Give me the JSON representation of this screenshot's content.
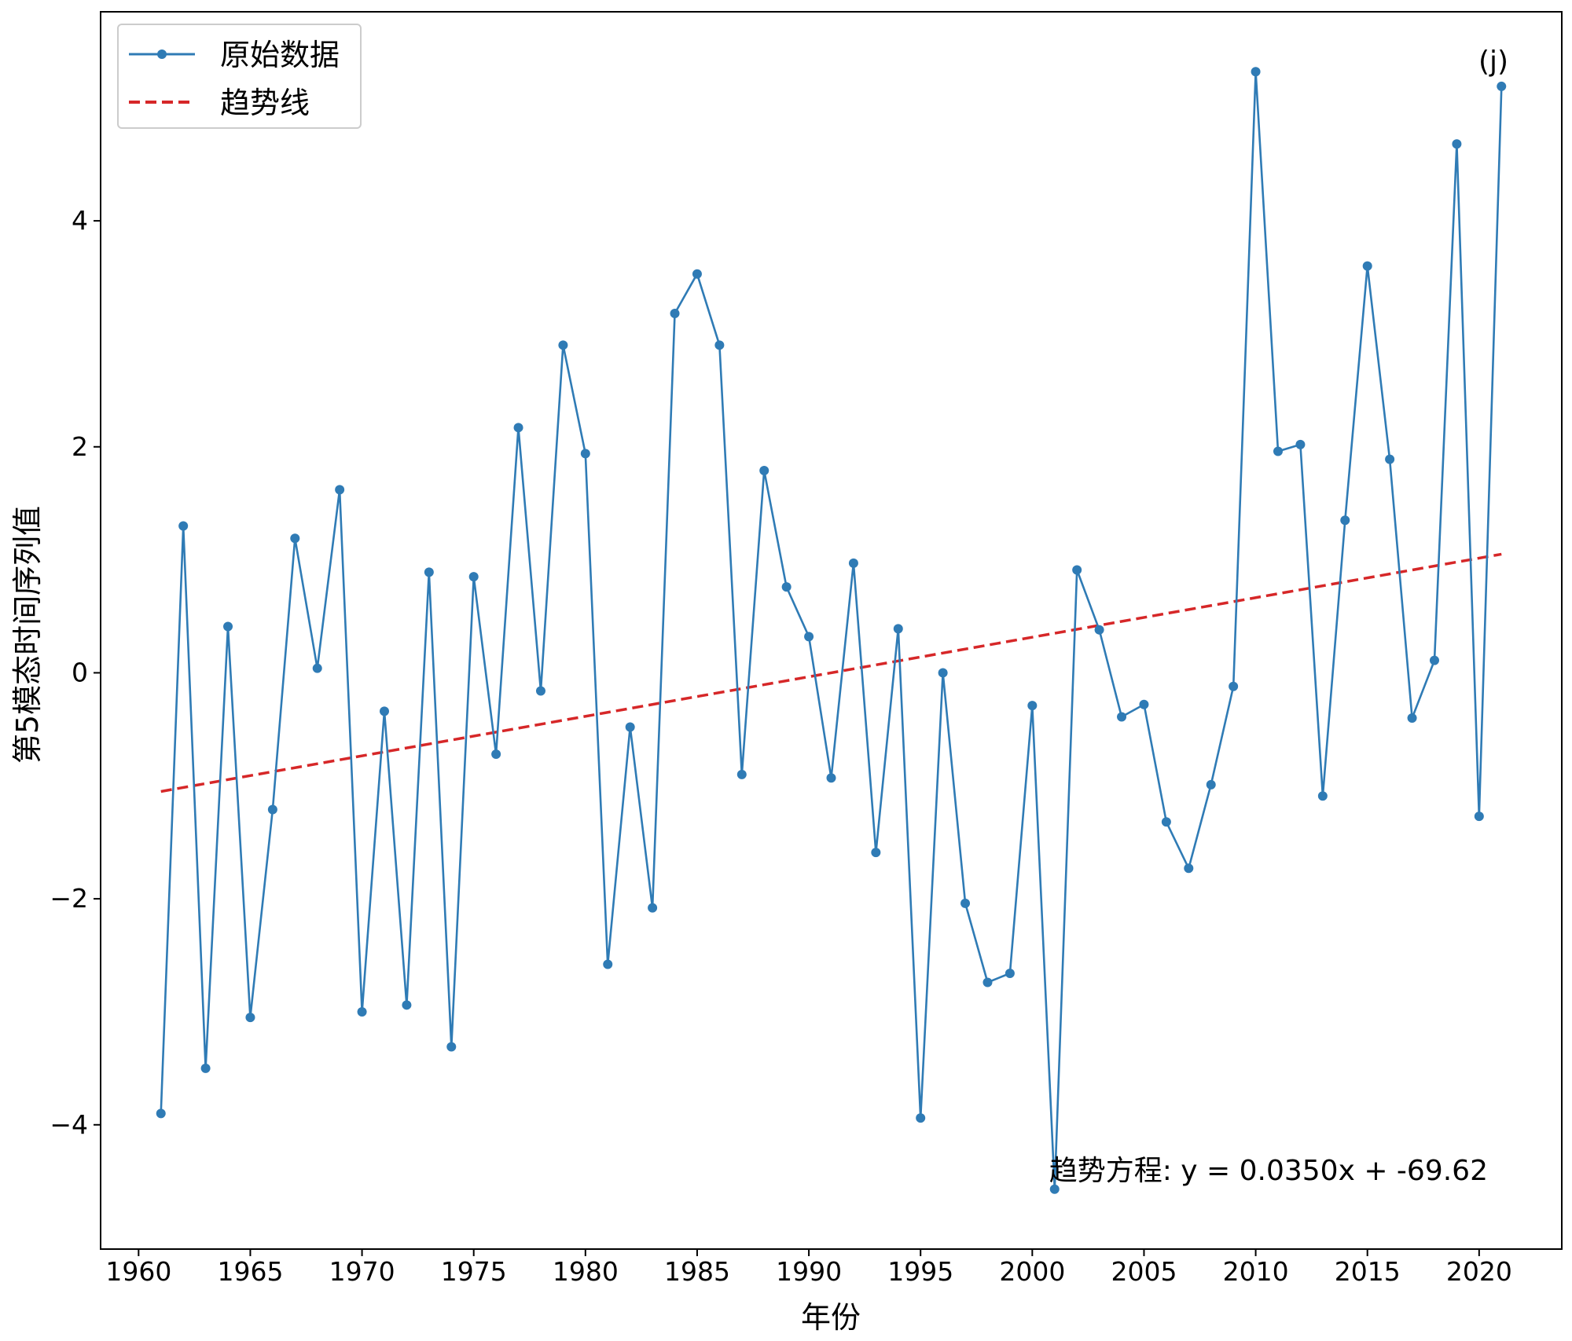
{
  "chart_data": {
    "type": "line",
    "title": "",
    "xlabel": "年份",
    "ylabel": "第5模态时间序列值",
    "panel_label": "(j)",
    "equation": "趋势方程: y = 0.0350x + -69.62",
    "xlim": [
      1958.3,
      2023.7
    ],
    "ylim": [
      -5.1,
      5.85
    ],
    "xticks": [
      1960,
      1965,
      1970,
      1975,
      1980,
      1985,
      1990,
      1995,
      2000,
      2005,
      2010,
      2015,
      2020
    ],
    "yticks": [
      -4,
      -2,
      0,
      2,
      4
    ],
    "ytick_labels": [
      "−4",
      "−2",
      "0",
      "2",
      "4"
    ],
    "legend": {
      "placement": "top-left",
      "entries": [
        {
          "label": "原始数据",
          "style": "line-marker"
        },
        {
          "label": "趋势线",
          "style": "dashed"
        }
      ]
    },
    "series": [
      {
        "name": "原始数据",
        "color": "#2f7bb5",
        "x": [
          1961,
          1962,
          1963,
          1964,
          1965,
          1966,
          1967,
          1968,
          1969,
          1970,
          1971,
          1972,
          1973,
          1974,
          1975,
          1976,
          1977,
          1978,
          1979,
          1980,
          1981,
          1982,
          1983,
          1984,
          1985,
          1986,
          1987,
          1988,
          1989,
          1990,
          1991,
          1992,
          1993,
          1994,
          1995,
          1996,
          1997,
          1998,
          1999,
          2000,
          2001,
          2002,
          2003,
          2004,
          2005,
          2006,
          2007,
          2008,
          2009,
          2010,
          2011,
          2012,
          2013,
          2014,
          2015,
          2016,
          2017,
          2018,
          2019,
          2020,
          2021
        ],
        "y": [
          -3.9,
          1.3,
          -3.5,
          0.41,
          -3.05,
          -1.21,
          1.19,
          0.04,
          1.62,
          -3.0,
          -0.34,
          -2.94,
          0.89,
          -3.31,
          0.85,
          -0.72,
          2.17,
          -0.16,
          2.9,
          1.94,
          -2.58,
          -0.48,
          -2.08,
          3.18,
          3.53,
          2.9,
          -0.9,
          1.79,
          0.76,
          0.32,
          -0.93,
          0.97,
          -1.59,
          0.39,
          -3.94,
          0.0,
          -2.04,
          -2.74,
          -2.66,
          -0.29,
          -4.57,
          0.91,
          0.38,
          -0.39,
          -0.28,
          -1.32,
          -1.73,
          -0.99,
          -0.12,
          5.32,
          1.96,
          2.02,
          -1.09,
          1.35,
          3.6,
          1.89,
          -0.4,
          0.11,
          4.68,
          -1.27,
          5.19
        ]
      },
      {
        "name": "趋势线",
        "color": "#d62728",
        "x": [
          1961,
          2021
        ],
        "y": [
          -1.05,
          1.05
        ]
      }
    ]
  }
}
